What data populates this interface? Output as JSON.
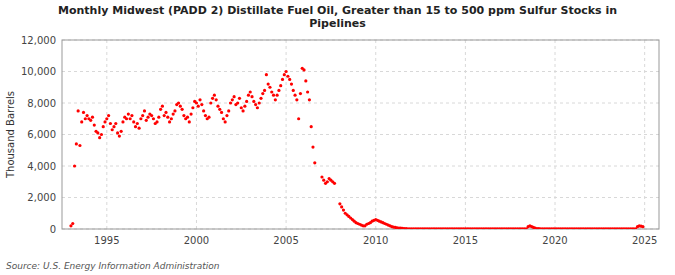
{
  "chart_data": {
    "type": "scatter",
    "title": "Monthly Midwest (PADD 2) Distillate Fuel Oil, Greater than 15 to 500 ppm Sulfur Stocks in\nPipelines",
    "y_label": "Thousand Barrels",
    "source": "Source: U.S. Energy Information Administration",
    "color": "#FF0000",
    "grid": true,
    "xlim": [
      1992.5,
      2025.8
    ],
    "ylim": [
      0,
      12000
    ],
    "xticks": [
      1995,
      2000,
      2005,
      2010,
      2015,
      2020,
      2025
    ],
    "yticks": [
      0,
      {
        "value": 2000,
        "label": "2,000"
      },
      {
        "value": 4000,
        "label": "4,000"
      },
      {
        "value": 6000,
        "label": "6,000"
      },
      {
        "value": 8000,
        "label": "8,000"
      },
      {
        "value": 10000,
        "label": "10,000"
      },
      {
        "value": 12000,
        "label": "12,000"
      }
    ],
    "x": [
      1993.0,
      1993.1,
      1993.2,
      1993.3,
      1993.4,
      1993.5,
      1993.6,
      1993.7,
      1993.8,
      1993.9,
      1994.0,
      1994.1,
      1994.2,
      1994.3,
      1994.4,
      1994.5,
      1994.6,
      1994.7,
      1994.8,
      1994.9,
      1995.0,
      1995.1,
      1995.2,
      1995.3,
      1995.4,
      1995.5,
      1995.6,
      1995.7,
      1995.8,
      1995.9,
      1996.0,
      1996.1,
      1996.2,
      1996.3,
      1996.4,
      1996.5,
      1996.6,
      1996.7,
      1996.8,
      1996.9,
      1997.0,
      1997.1,
      1997.2,
      1997.3,
      1997.4,
      1997.5,
      1997.6,
      1997.7,
      1997.8,
      1997.9,
      1998.0,
      1998.1,
      1998.2,
      1998.3,
      1998.4,
      1998.5,
      1998.6,
      1998.7,
      1998.8,
      1998.9,
      1999.0,
      1999.1,
      1999.2,
      1999.3,
      1999.4,
      1999.5,
      1999.6,
      1999.7,
      1999.8,
      1999.9,
      2000.0,
      2000.1,
      2000.2,
      2000.3,
      2000.4,
      2000.5,
      2000.6,
      2000.7,
      2000.8,
      2000.9,
      2001.0,
      2001.1,
      2001.2,
      2001.3,
      2001.4,
      2001.5,
      2001.6,
      2001.7,
      2001.8,
      2001.9,
      2002.0,
      2002.1,
      2002.2,
      2002.3,
      2002.4,
      2002.5,
      2002.6,
      2002.7,
      2002.8,
      2002.9,
      2003.0,
      2003.1,
      2003.2,
      2003.3,
      2003.4,
      2003.5,
      2003.6,
      2003.7,
      2003.8,
      2003.9,
      2004.0,
      2004.1,
      2004.2,
      2004.3,
      2004.4,
      2004.5,
      2004.6,
      2004.7,
      2004.8,
      2004.9,
      2005.0,
      2005.1,
      2005.2,
      2005.3,
      2005.4,
      2005.5,
      2005.6,
      2005.7,
      2005.8,
      2005.9,
      2006.0,
      2006.1,
      2006.2,
      2006.3,
      2006.4,
      2006.5,
      2006.6,
      2007.0,
      2007.1,
      2007.2,
      2007.3,
      2007.4,
      2007.5,
      2007.6,
      2007.7,
      2008.0,
      2008.1,
      2008.2,
      2008.3,
      2008.4,
      2008.5,
      2008.6,
      2008.7,
      2008.8,
      2008.9,
      2009.0,
      2009.1,
      2009.2,
      2009.3,
      2009.4,
      2009.5,
      2009.6,
      2009.7,
      2009.8,
      2009.9,
      2010.0,
      2010.1,
      2010.2,
      2010.3,
      2010.4,
      2010.5,
      2010.6,
      2010.7,
      2010.8,
      2010.9,
      2011.0,
      2011.1,
      2011.2,
      2011.3,
      2011.4,
      2011.5,
      2011.6,
      2011.7,
      2011.8,
      2011.9,
      2012.0,
      2012.1,
      2012.2,
      2012.3,
      2012.4,
      2012.5,
      2012.6,
      2012.7,
      2012.8,
      2012.9,
      2013.0,
      2013.1,
      2013.2,
      2013.3,
      2013.4,
      2013.5,
      2013.6,
      2013.7,
      2013.8,
      2013.9,
      2014.0,
      2014.1,
      2014.2,
      2014.3,
      2014.4,
      2014.5,
      2014.6,
      2014.7,
      2014.8,
      2014.9,
      2015.0,
      2015.1,
      2015.2,
      2015.3,
      2015.4,
      2015.5,
      2015.6,
      2015.7,
      2015.8,
      2015.9,
      2016.0,
      2016.1,
      2016.2,
      2016.3,
      2016.4,
      2016.5,
      2016.6,
      2016.7,
      2016.8,
      2016.9,
      2017.0,
      2017.1,
      2017.2,
      2017.3,
      2017.4,
      2017.5,
      2017.6,
      2017.7,
      2017.8,
      2017.9,
      2018.0,
      2018.1,
      2018.2,
      2018.3,
      2018.4,
      2018.5,
      2018.6,
      2018.7,
      2018.8,
      2018.9,
      2019.0,
      2019.1,
      2019.2,
      2019.3,
      2019.4,
      2019.5,
      2019.6,
      2019.7,
      2019.8,
      2019.9,
      2020.0,
      2020.1,
      2020.2,
      2020.3,
      2020.4,
      2020.5,
      2020.6,
      2020.7,
      2020.8,
      2020.9,
      2021.0,
      2021.1,
      2021.2,
      2021.3,
      2021.4,
      2021.5,
      2021.6,
      2021.7,
      2021.8,
      2021.9,
      2022.0,
      2022.1,
      2022.2,
      2022.3,
      2022.4,
      2022.5,
      2022.6,
      2022.7,
      2022.8,
      2022.9,
      2023.0,
      2023.1,
      2023.2,
      2023.3,
      2023.4,
      2023.5,
      2023.6,
      2023.7,
      2023.8,
      2023.9,
      2024.0,
      2024.1,
      2024.2,
      2024.3,
      2024.4,
      2024.5,
      2024.6,
      2024.7,
      2024.8,
      2024.9
    ],
    "values": [
      200,
      350,
      4000,
      5400,
      7500,
      5300,
      6800,
      7400,
      7000,
      7200,
      7000,
      6900,
      7100,
      6600,
      6200,
      6100,
      5800,
      6000,
      6500,
      6800,
      7000,
      7200,
      6700,
      6300,
      6500,
      6700,
      6100,
      5900,
      6200,
      6800,
      7100,
      7000,
      7300,
      7000,
      7200,
      6800,
      6500,
      6700,
      6400,
      7000,
      7200,
      7500,
      6900,
      7100,
      7300,
      7200,
      7000,
      6700,
      6800,
      7100,
      7600,
      7800,
      7200,
      7400,
      7100,
      6800,
      7000,
      7300,
      7500,
      7900,
      8000,
      7800,
      7600,
      7200,
      7000,
      7100,
      6800,
      7300,
      7700,
      8100,
      8000,
      7800,
      8200,
      7900,
      7500,
      7200,
      7000,
      7100,
      8000,
      8300,
      8500,
      8200,
      7800,
      7600,
      7400,
      7000,
      6800,
      7200,
      7500,
      8000,
      8200,
      8400,
      7900,
      8000,
      8300,
      7700,
      7500,
      7800,
      8100,
      8500,
      8700,
      8400,
      8100,
      7900,
      7700,
      8000,
      8300,
      8600,
      8800,
      9800,
      9200,
      9000,
      8700,
      8500,
      8200,
      8500,
      8800,
      9100,
      9500,
      9800,
      10000,
      9700,
      9500,
      9200,
      8800,
      8500,
      8200,
      7000,
      8600,
      10200,
      10100,
      9400,
      8700,
      8200,
      6500,
      5200,
      4200,
      3300,
      3100,
      2900,
      3000,
      3200,
      3100,
      3000,
      2900,
      1600,
      1400,
      1200,
      1000,
      900,
      800,
      700,
      600,
      500,
      400,
      350,
      300,
      250,
      200,
      200,
      300,
      350,
      400,
      500,
      550,
      600,
      550,
      500,
      450,
      400,
      350,
      300,
      250,
      200,
      150,
      120,
      100,
      80,
      60,
      50,
      40,
      30,
      20,
      15,
      10,
      8,
      6,
      5,
      4,
      3,
      3,
      2,
      2,
      2,
      2,
      2,
      2,
      2,
      2,
      2,
      2,
      2,
      2,
      2,
      2,
      2,
      2,
      2,
      2,
      2,
      2,
      2,
      2,
      2,
      2,
      2,
      2,
      2,
      2,
      2,
      2,
      2,
      2,
      2,
      2,
      2,
      2,
      2,
      2,
      2,
      2,
      2,
      2,
      2,
      2,
      2,
      2,
      2,
      2,
      2,
      2,
      2,
      2,
      2,
      2,
      2,
      2,
      2,
      2,
      2,
      150,
      200,
      150,
      100,
      50,
      30,
      20,
      10,
      5,
      2,
      2,
      2,
      2,
      2,
      2,
      2,
      2,
      2,
      2,
      2,
      2,
      2,
      2,
      2,
      2,
      2,
      2,
      2,
      2,
      2,
      2,
      2,
      2,
      2,
      2,
      2,
      2,
      2,
      2,
      2,
      2,
      2,
      2,
      2,
      2,
      2,
      2,
      2,
      2,
      2,
      2,
      2,
      2,
      2,
      2,
      2,
      2,
      2,
      2,
      2,
      2,
      150,
      200,
      180,
      150
    ]
  }
}
